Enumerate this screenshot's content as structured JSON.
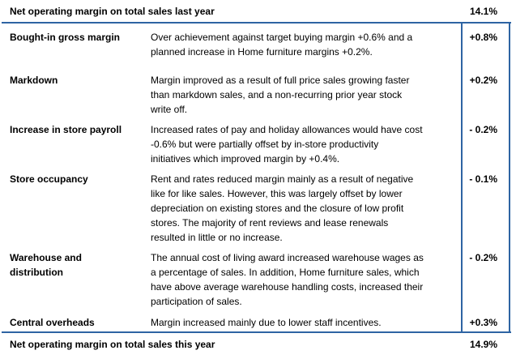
{
  "header": {
    "label": "Net operating margin on total sales last year",
    "value": "14.1%"
  },
  "rows": [
    {
      "label_lines": [
        "Bought-in gross margin"
      ],
      "desc_lines": [
        "Over achievement against target buying margin +0.6% and a",
        "planned increase in Home furniture margins +0.2%."
      ],
      "value": "+0.8%"
    },
    {
      "label_lines": [
        "Markdown"
      ],
      "desc_lines": [
        "Margin improved as a result of full price sales growing faster",
        "than markdown sales, and a non-recurring prior year stock",
        "write off."
      ],
      "value": "+0.2%"
    },
    {
      "label_lines": [
        "Increase in store payroll"
      ],
      "desc_lines": [
        "Increased rates of pay and holiday allowances would have cost",
        "-0.6% but were partially offset by in-store productivity",
        "initiatives which improved margin by +0.4%."
      ],
      "value": "- 0.2%"
    },
    {
      "label_lines": [
        "Store occupancy"
      ],
      "desc_lines": [
        "Rent and rates reduced margin mainly as a result of negative",
        "like for like sales.  However, this was largely offset by lower",
        "depreciation on existing stores and the closure of low profit",
        "stores.  The majority of rent reviews and lease renewals",
        "resulted in little or no increase."
      ],
      "value": "- 0.1%"
    },
    {
      "label_lines": [
        "Warehouse and",
        "distribution"
      ],
      "desc_lines": [
        "The annual cost of living award increased warehouse wages as",
        "a percentage of sales.  In addition, Home furniture sales, which",
        "have above average warehouse handling costs, increased their",
        "participation of sales."
      ],
      "value": "- 0.2%"
    },
    {
      "label_lines": [
        "Central overheads"
      ],
      "desc_lines": [
        "Margin increased mainly due to lower staff incentives."
      ],
      "value": "+0.3%"
    }
  ],
  "footer": {
    "label": "Net operating margin on total sales this year",
    "value": "14.9%"
  }
}
